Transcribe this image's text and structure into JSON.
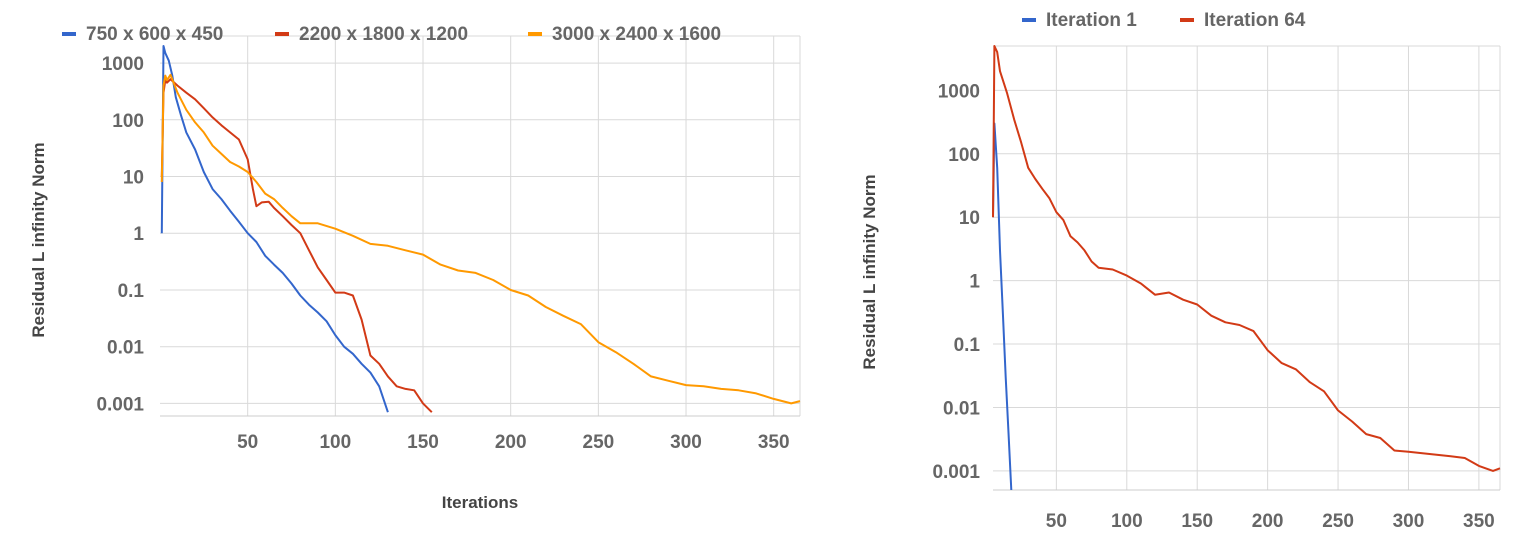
{
  "chart_data": [
    {
      "type": "line",
      "title": "",
      "xlabel": "Iterations",
      "ylabel": "Residual L infinity Norm",
      "yscale": "log",
      "xlim": [
        0,
        365
      ],
      "ylim": [
        0.0006,
        3000
      ],
      "xticks": [
        "50",
        "100",
        "150",
        "200",
        "250",
        "300",
        "350"
      ],
      "yticks": [
        "0.001",
        "0.01",
        "0.1",
        "1",
        "10",
        "100",
        "1000"
      ],
      "grid": true,
      "legend": "top",
      "series": [
        {
          "name": "750 x 600 x 450",
          "color": "#3366cc",
          "points": [
            [
              1,
              1
            ],
            [
              2,
              2000
            ],
            [
              3,
              1500
            ],
            [
              5,
              1100
            ],
            [
              7,
              600
            ],
            [
              9,
              250
            ],
            [
              12,
              120
            ],
            [
              15,
              60
            ],
            [
              20,
              30
            ],
            [
              25,
              12
            ],
            [
              30,
              6
            ],
            [
              35,
              4
            ],
            [
              40,
              2.5
            ],
            [
              45,
              1.6
            ],
            [
              50,
              1
            ],
            [
              55,
              0.7
            ],
            [
              60,
              0.4
            ],
            [
              65,
              0.28
            ],
            [
              70,
              0.2
            ],
            [
              75,
              0.13
            ],
            [
              80,
              0.08
            ],
            [
              85,
              0.055
            ],
            [
              90,
              0.04
            ],
            [
              95,
              0.028
            ],
            [
              100,
              0.016
            ],
            [
              105,
              0.01
            ],
            [
              110,
              0.0075
            ],
            [
              115,
              0.005
            ],
            [
              120,
              0.0035
            ],
            [
              125,
              0.002
            ],
            [
              130,
              0.0007
            ]
          ]
        },
        {
          "name": "2200 x 1800 x 1200",
          "color": "#d23a16",
          "points": [
            [
              1,
              10
            ],
            [
              2,
              300
            ],
            [
              3,
              500
            ],
            [
              4,
              450
            ],
            [
              6,
              520
            ],
            [
              10,
              400
            ],
            [
              15,
              300
            ],
            [
              20,
              230
            ],
            [
              25,
              160
            ],
            [
              30,
              110
            ],
            [
              35,
              80
            ],
            [
              40,
              60
            ],
            [
              45,
              45
            ],
            [
              50,
              20
            ],
            [
              53,
              6
            ],
            [
              55,
              3
            ],
            [
              58,
              3.5
            ],
            [
              62,
              3.6
            ],
            [
              65,
              2.8
            ],
            [
              70,
              2
            ],
            [
              75,
              1.4
            ],
            [
              80,
              1
            ],
            [
              85,
              0.5
            ],
            [
              90,
              0.25
            ],
            [
              95,
              0.15
            ],
            [
              100,
              0.09
            ],
            [
              105,
              0.09
            ],
            [
              110,
              0.08
            ],
            [
              115,
              0.03
            ],
            [
              120,
              0.007
            ],
            [
              125,
              0.005
            ],
            [
              130,
              0.003
            ],
            [
              135,
              0.002
            ],
            [
              140,
              0.0018
            ],
            [
              145,
              0.0017
            ],
            [
              150,
              0.001
            ],
            [
              155,
              0.0007
            ]
          ]
        },
        {
          "name": "3000 x 2400 x 1600",
          "color": "#ff9900",
          "points": [
            [
              1,
              8
            ],
            [
              2,
              400
            ],
            [
              3,
              600
            ],
            [
              4,
              500
            ],
            [
              6,
              620
            ],
            [
              10,
              300
            ],
            [
              15,
              150
            ],
            [
              20,
              90
            ],
            [
              25,
              60
            ],
            [
              30,
              35
            ],
            [
              35,
              25
            ],
            [
              40,
              18
            ],
            [
              45,
              15
            ],
            [
              50,
              12
            ],
            [
              55,
              8
            ],
            [
              60,
              5
            ],
            [
              65,
              4
            ],
            [
              70,
              2.8
            ],
            [
              75,
              2
            ],
            [
              80,
              1.5
            ],
            [
              90,
              1.5
            ],
            [
              100,
              1.2
            ],
            [
              110,
              0.9
            ],
            [
              120,
              0.65
            ],
            [
              130,
              0.6
            ],
            [
              140,
              0.5
            ],
            [
              150,
              0.42
            ],
            [
              160,
              0.28
            ],
            [
              170,
              0.22
            ],
            [
              180,
              0.2
            ],
            [
              190,
              0.15
            ],
            [
              200,
              0.1
            ],
            [
              210,
              0.08
            ],
            [
              220,
              0.05
            ],
            [
              230,
              0.035
            ],
            [
              240,
              0.025
            ],
            [
              250,
              0.012
            ],
            [
              260,
              0.008
            ],
            [
              270,
              0.005
            ],
            [
              280,
              0.003
            ],
            [
              290,
              0.0025
            ],
            [
              300,
              0.0021
            ],
            [
              310,
              0.002
            ],
            [
              320,
              0.0018
            ],
            [
              330,
              0.0017
            ],
            [
              340,
              0.0015
            ],
            [
              350,
              0.0012
            ],
            [
              360,
              0.001
            ],
            [
              365,
              0.0011
            ]
          ]
        }
      ]
    },
    {
      "type": "line",
      "title": "",
      "xlabel": "",
      "ylabel": "Residual L infinity Norm",
      "yscale": "log",
      "xlim": [
        5,
        365
      ],
      "ylim": [
        0.0005,
        5000
      ],
      "xticks": [
        "50",
        "100",
        "150",
        "200",
        "250",
        "300",
        "350"
      ],
      "yticks": [
        "0.001",
        "0.01",
        "0.1",
        "1",
        "10",
        "100",
        "1000"
      ],
      "grid": true,
      "legend": "top",
      "series": [
        {
          "name": "Iteration 1",
          "color": "#3366cc",
          "points": [
            [
              5,
              10
            ],
            [
              6,
              300
            ],
            [
              8,
              60
            ],
            [
              10,
              3
            ],
            [
              12,
              0.3
            ],
            [
              14,
              0.03
            ],
            [
              16,
              0.004
            ],
            [
              18,
              0.0005
            ]
          ]
        },
        {
          "name": "Iteration 64",
          "color": "#d23a16",
          "points": [
            [
              5,
              10
            ],
            [
              6,
              5000
            ],
            [
              8,
              4000
            ],
            [
              10,
              2000
            ],
            [
              15,
              900
            ],
            [
              20,
              350
            ],
            [
              25,
              150
            ],
            [
              30,
              60
            ],
            [
              35,
              40
            ],
            [
              40,
              28
            ],
            [
              45,
              20
            ],
            [
              50,
              12
            ],
            [
              55,
              9
            ],
            [
              60,
              5
            ],
            [
              65,
              4
            ],
            [
              70,
              3
            ],
            [
              75,
              2
            ],
            [
              80,
              1.6
            ],
            [
              90,
              1.5
            ],
            [
              100,
              1.2
            ],
            [
              110,
              0.9
            ],
            [
              120,
              0.6
            ],
            [
              130,
              0.65
            ],
            [
              140,
              0.5
            ],
            [
              150,
              0.42
            ],
            [
              160,
              0.28
            ],
            [
              170,
              0.22
            ],
            [
              180,
              0.2
            ],
            [
              190,
              0.16
            ],
            [
              200,
              0.08
            ],
            [
              210,
              0.05
            ],
            [
              220,
              0.04
            ],
            [
              230,
              0.025
            ],
            [
              240,
              0.018
            ],
            [
              250,
              0.009
            ],
            [
              260,
              0.006
            ],
            [
              270,
              0.0038
            ],
            [
              280,
              0.0033
            ],
            [
              290,
              0.0021
            ],
            [
              300,
              0.002
            ],
            [
              310,
              0.0019
            ],
            [
              320,
              0.0018
            ],
            [
              330,
              0.0017
            ],
            [
              340,
              0.0016
            ],
            [
              350,
              0.0012
            ],
            [
              360,
              0.001
            ],
            [
              365,
              0.0011
            ]
          ]
        }
      ]
    }
  ]
}
